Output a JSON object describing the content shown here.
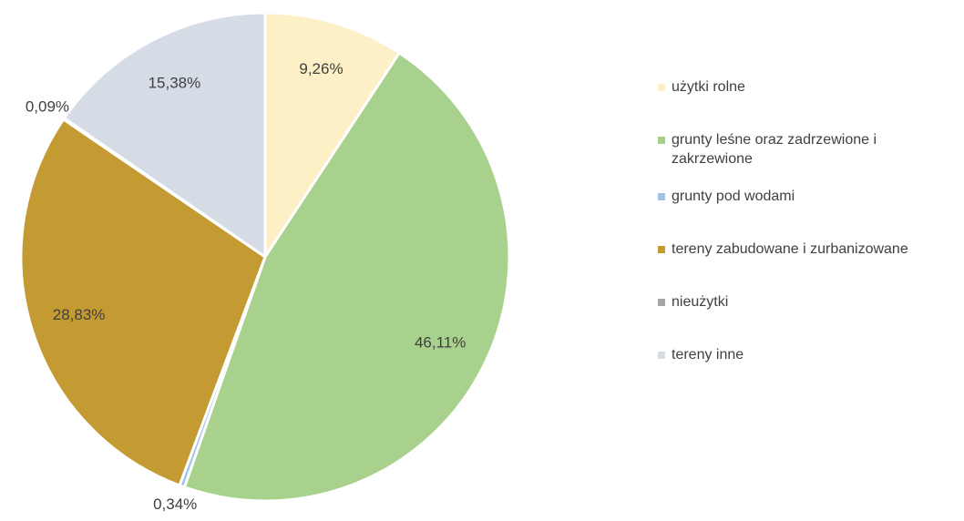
{
  "chart_data": {
    "type": "pie",
    "categories": [
      "użytki rolne",
      "grunty leśne oraz zadrzewione i zakrzewione",
      "grunty pod wodami",
      "tereny zabudowane i zurbanizowane",
      "nieużytki",
      "tereny inne"
    ],
    "values": [
      9.26,
      46.11,
      0.34,
      28.83,
      0.09,
      15.38
    ],
    "value_labels": [
      "9,26%",
      "46,11%",
      "0,34%",
      "28,83%",
      "0,09%",
      "15,38%"
    ],
    "colors": [
      "#fdf0c6",
      "#a9d18e",
      "#9dc3e6",
      "#c49b33",
      "#a6a6a6",
      "#d6dce5"
    ],
    "legend": "right"
  }
}
